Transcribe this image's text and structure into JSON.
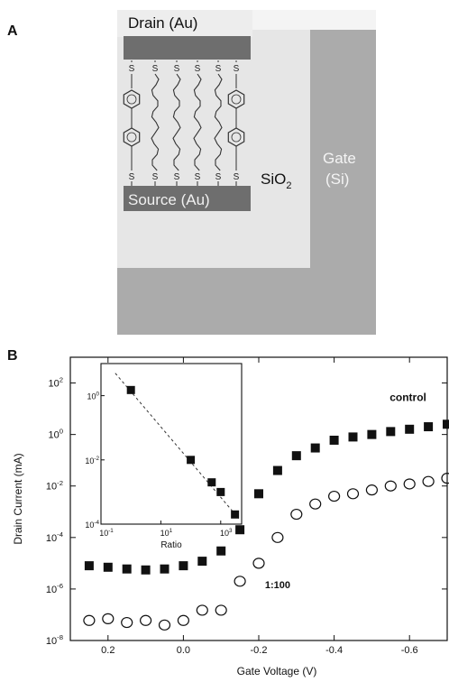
{
  "panel_a": {
    "label": "A",
    "drain_label": "Drain (Au)",
    "source_label": "Source (Au)",
    "oxide_label": "SiO",
    "oxide_subscript": "2",
    "gate_label_line1": "Gate",
    "gate_label_line2": "(Si)",
    "sulfur_symbol": "S",
    "colors": {
      "gate": "#ababab",
      "oxide": "#e8e8e8",
      "electrode": "#6e6e6e",
      "background": "#f2f2f2"
    }
  },
  "panel_b": {
    "label": "B"
  },
  "chart_data": [
    {
      "type": "scatter",
      "xlabel": "Gate Voltage (V)",
      "ylabel": "Drain Current (mA)",
      "x_reversed": true,
      "xlim": [
        0.3,
        -0.7
      ],
      "x_ticks": [
        0.2,
        0.0,
        -0.2,
        -0.4,
        -0.6
      ],
      "x_tick_labels": [
        "0.2",
        "0.0",
        "-0.2",
        "-0.4",
        "-0.6"
      ],
      "yscale": "log",
      "ylim": [
        1e-08,
        1000.0
      ],
      "y_ticks": [
        1e-08,
        1e-06,
        0.0001,
        0.01,
        1.0,
        100.0
      ],
      "y_tick_labels": [
        [
          "10",
          "-8"
        ],
        [
          "10",
          "-6"
        ],
        [
          "10",
          "-4"
        ],
        [
          "10",
          "-2"
        ],
        [
          "10",
          "0"
        ],
        [
          "10",
          "2"
        ]
      ],
      "series": [
        {
          "name": "control",
          "marker": "filled-square",
          "x": [
            0.25,
            0.2,
            0.15,
            0.1,
            0.05,
            0.0,
            -0.05,
            -0.1,
            -0.15,
            -0.2,
            -0.25,
            -0.3,
            -0.35,
            -0.4,
            -0.45,
            -0.5,
            -0.55,
            -0.6,
            -0.65,
            -0.7
          ],
          "y": [
            8e-06,
            7e-06,
            6e-06,
            5.5e-06,
            6e-06,
            8e-06,
            1.2e-05,
            3e-05,
            0.0002,
            0.005,
            0.04,
            0.15,
            0.3,
            0.6,
            0.8,
            1.0,
            1.3,
            1.6,
            2.0,
            2.5
          ]
        },
        {
          "name": "1:100",
          "marker": "open-circle",
          "x": [
            0.25,
            0.2,
            0.15,
            0.1,
            0.05,
            0.0,
            -0.05,
            -0.1,
            -0.15,
            -0.2,
            -0.25,
            -0.3,
            -0.35,
            -0.4,
            -0.45,
            -0.5,
            -0.55,
            -0.6,
            -0.65,
            -0.7
          ],
          "y": [
            6e-08,
            7e-08,
            5e-08,
            6e-08,
            4e-08,
            6e-08,
            1.5e-07,
            1.5e-07,
            2e-06,
            1e-05,
            0.0001,
            0.0008,
            0.002,
            0.004,
            0.005,
            0.007,
            0.01,
            0.012,
            0.015,
            0.02
          ]
        }
      ]
    },
    {
      "type": "scatter",
      "inset": true,
      "xlabel": "Ratio",
      "ylabel": "",
      "xscale": "log",
      "yscale": "log",
      "xlim": [
        0.1,
        5000
      ],
      "ylim": [
        0.0001,
        10
      ],
      "x_tick_labels": [
        [
          "10",
          "-1"
        ],
        [
          "10",
          "1"
        ],
        [
          "10",
          "3"
        ]
      ],
      "y_tick_labels": [
        [
          "10",
          "-4"
        ],
        [
          "10",
          "-2"
        ],
        [
          "10",
          "0"
        ]
      ],
      "series": [
        {
          "marker": "filled-square",
          "x": [
            1,
            100,
            500,
            1000,
            3000
          ],
          "y": [
            1.5,
            0.01,
            0.002,
            0.001,
            0.0002
          ]
        }
      ],
      "fit_line": {
        "x": [
          0.3,
          4000
        ],
        "y": [
          5,
          0.00015
        ],
        "style": "dashed"
      }
    }
  ]
}
